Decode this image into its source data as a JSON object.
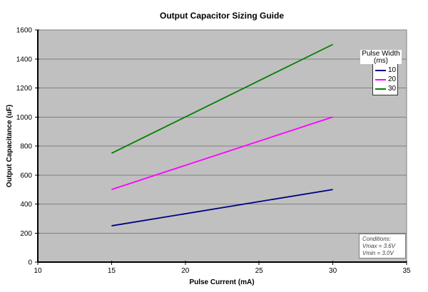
{
  "chart_data": {
    "type": "line",
    "title": "Output Capacitor Sizing Guide",
    "xlabel": "Pulse Current (mA)",
    "ylabel": "Output Capacitance (uF)",
    "xlim": [
      10,
      35
    ],
    "ylim": [
      0,
      1600
    ],
    "xticks": [
      10,
      15,
      20,
      25,
      30,
      35
    ],
    "yticks": [
      0,
      200,
      400,
      600,
      800,
      1000,
      1200,
      1400,
      1600
    ],
    "grid": "horizontal-major",
    "plot_bg": "#c0c0c0",
    "gridline_color": "#808080",
    "axis_color": "#000000",
    "legend_position": "right-inside-top",
    "series": [
      {
        "name": "10",
        "color": "#000080",
        "x": [
          15,
          30
        ],
        "y": [
          250,
          500
        ]
      },
      {
        "name": "20",
        "color": "#ff00ff",
        "x": [
          15,
          30
        ],
        "y": [
          500,
          1000
        ]
      },
      {
        "name": "30",
        "color": "#008000",
        "x": [
          15,
          30
        ],
        "y": [
          750,
          1500
        ]
      }
    ]
  },
  "legend": {
    "title_line1": "Pulse Width",
    "title_line2": "(ms)"
  },
  "conditions": {
    "line1": "Conditions:",
    "line2": "Vmax = 3.6V",
    "line3": "Vmin = 3.0V"
  }
}
